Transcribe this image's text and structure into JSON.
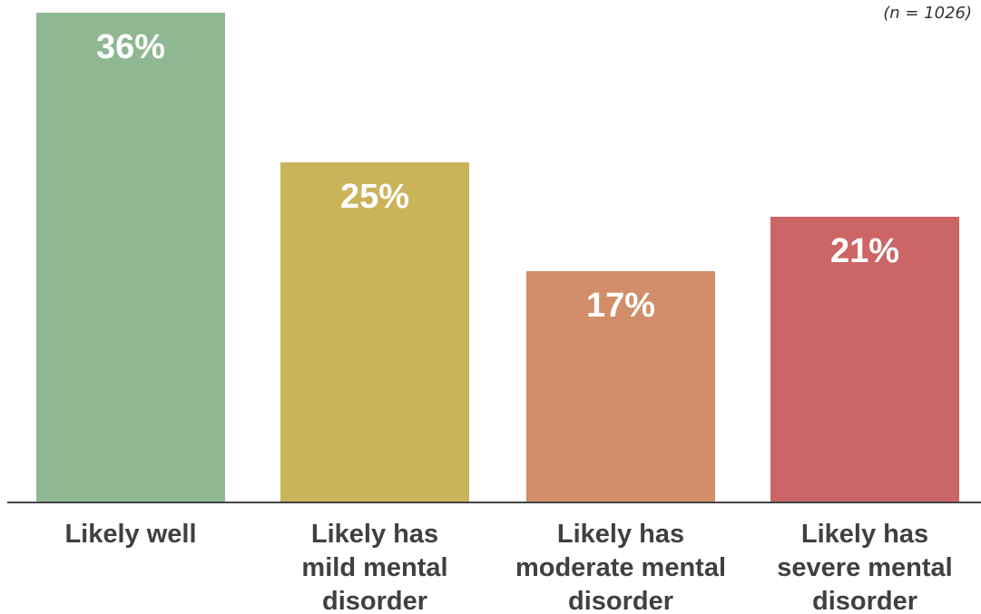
{
  "chart_data": {
    "type": "bar",
    "note": "(n = 1026)",
    "categories": [
      [
        "Likely well"
      ],
      [
        "Likely has",
        "mild mental",
        "disorder"
      ],
      [
        "Likely has",
        "moderate mental",
        "disorder"
      ],
      [
        "Likely has",
        "severe mental",
        "disorder"
      ]
    ],
    "values": [
      36,
      25,
      17,
      21
    ],
    "value_labels": [
      "36%",
      "25%",
      "17%",
      "21%"
    ],
    "colors": [
      "#8fb892",
      "#cbb35a",
      "#d18e68",
      "#cb6566"
    ],
    "ylim": [
      0,
      36
    ],
    "grid": false,
    "legend": "none"
  }
}
